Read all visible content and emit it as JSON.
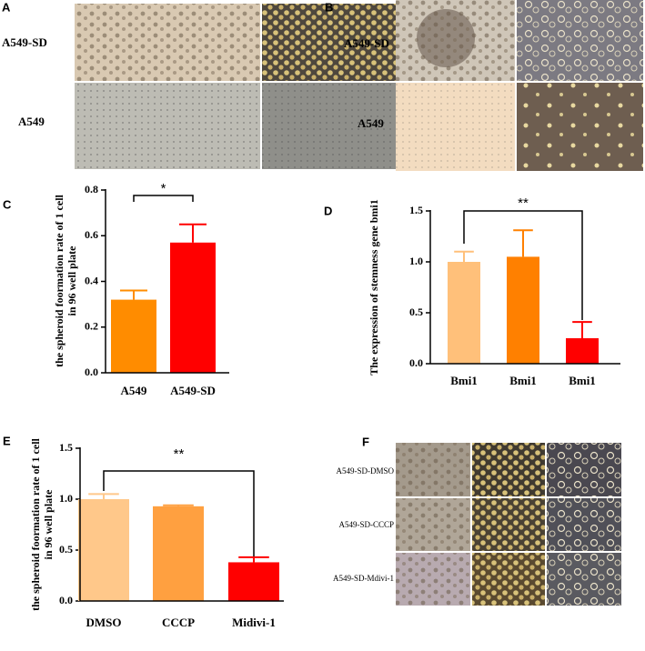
{
  "figure": {
    "letters": [
      "A",
      "B",
      "C",
      "D",
      "E",
      "F"
    ],
    "a_labels": [
      "A549-SD",
      "A549"
    ],
    "b_labels": [
      "A549-SD",
      "A549"
    ],
    "f_labels": [
      "A549-SD-DMSO",
      "A549-SD-CCCP",
      "A549-SD-Mdivi-1"
    ]
  },
  "chart_data": [
    {
      "type": "bar",
      "ylabel": [
        "the spheroid foormation rate of 1 cell",
        "in 96 well plate"
      ],
      "categories": [
        "A549",
        "A549-SD"
      ],
      "values": [
        0.32,
        0.57
      ],
      "errors": [
        0.04,
        0.08
      ],
      "colors": [
        "#ff8c00",
        "#ff0000"
      ],
      "annotation": "*",
      "ylim": [
        0,
        0.8
      ],
      "yticks": [
        {
          "value": 0,
          "label": "0.0"
        },
        0.2,
        0.4,
        0.6,
        0.8
      ]
    },
    {
      "type": "bar",
      "ylabel": [
        "The expression of stemness gene bmi1"
      ],
      "categories": [
        "Bmi1",
        "Bmi1",
        "Bmi1"
      ],
      "values": [
        1.0,
        1.05,
        0.25
      ],
      "errors": [
        0.1,
        0.26,
        0.16
      ],
      "colors": [
        "#ffc07a",
        "#ff8000",
        "#ff0000"
      ],
      "annotation": "**",
      "ylim": [
        0,
        1.5
      ],
      "yticks": [
        {
          "value": 0,
          "label": "0.0"
        },
        0.5,
        {
          "value": 1,
          "label": "1.0"
        },
        1.5
      ]
    },
    {
      "type": "bar",
      "ylabel": [
        "the spheroid foormation rate of 1 cell",
        "in 96 well plate"
      ],
      "categories": [
        "DMSO",
        "CCCP",
        "Midivi-1"
      ],
      "values": [
        1.0,
        0.93,
        0.38
      ],
      "errors": [
        0.05,
        0.01,
        0.05
      ],
      "colors": [
        "#ffc88a",
        "#ffa040",
        "#ff0000"
      ],
      "annotation": "**",
      "ylim": [
        0,
        1.5
      ],
      "yticks": [
        {
          "value": 0,
          "label": "0.0"
        },
        0.5,
        {
          "value": 1,
          "label": "1.0"
        },
        1.5
      ]
    }
  ]
}
